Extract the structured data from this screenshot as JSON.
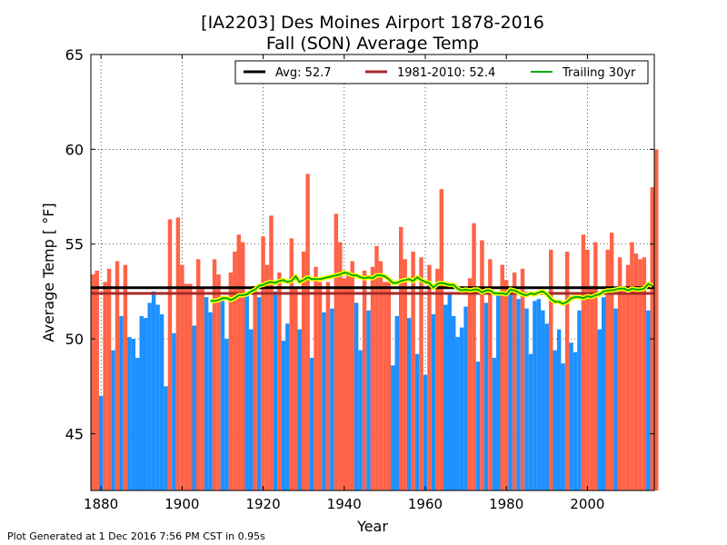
{
  "chart_data": {
    "type": "bar",
    "title": "[IA2203] Des Moines Airport 1878-2016",
    "subtitle": "Fall (SON) Average Temp",
    "xlabel": "Year",
    "ylabel": "Average Temp [ °F]",
    "xlim": [
      1877.5,
      2016.5
    ],
    "ylim": [
      42,
      65
    ],
    "xticks": [
      1880,
      1900,
      1920,
      1940,
      1960,
      1980,
      2000
    ],
    "yticks": [
      45,
      50,
      55,
      60,
      65
    ],
    "grid": true,
    "legend_position": "top-right",
    "above_color": "#ff6347",
    "below_color": "#1e90ff",
    "start_year": 1878,
    "values": [
      53.4,
      53.6,
      47.0,
      53.0,
      53.7,
      49.4,
      54.1,
      51.2,
      53.9,
      50.1,
      50.0,
      49.0,
      51.2,
      51.1,
      51.9,
      52.5,
      51.8,
      51.3,
      47.5,
      56.3,
      50.3,
      56.4,
      53.9,
      52.9,
      52.9,
      50.7,
      54.2,
      52.7,
      52.2,
      51.4,
      54.2,
      53.4,
      52.0,
      50.0,
      53.5,
      54.6,
      55.5,
      55.1,
      52.3,
      50.5,
      52.8,
      52.2,
      55.4,
      53.9,
      56.5,
      52.5,
      53.5,
      49.9,
      50.8,
      55.3,
      52.7,
      50.5,
      54.6,
      58.7,
      49.0,
      53.8,
      53.0,
      51.4,
      53.0,
      51.6,
      56.6,
      55.1,
      53.2,
      53.5,
      54.1,
      51.9,
      49.4,
      53.6,
      51.5,
      53.8,
      54.9,
      54.1,
      53.0,
      53.0,
      48.6,
      51.2,
      55.9,
      54.2,
      51.1,
      54.6,
      49.2,
      54.3,
      48.1,
      53.9,
      51.3,
      53.7,
      57.9,
      51.8,
      52.4,
      51.2,
      50.1,
      50.6,
      51.7,
      53.2,
      56.1,
      48.8,
      55.2,
      51.9,
      54.2,
      49.0,
      52.5,
      53.9,
      53.1,
      52.4,
      53.5,
      52.1,
      53.7,
      51.6,
      49.2,
      52.0,
      52.1,
      51.5,
      50.8,
      54.7,
      49.4,
      50.5,
      48.7,
      54.6,
      49.8,
      49.3,
      51.5,
      55.5,
      54.7,
      52.8,
      55.1,
      50.5,
      52.2,
      54.7,
      55.6,
      51.6,
      54.3,
      52.7,
      53.9,
      55.1,
      54.5,
      54.2,
      54.3,
      51.5,
      58.0,
      60.0
    ],
    "trailing_start_year": 1907,
    "trailing_30yr": [
      52.0,
      52.0,
      52.05,
      52.15,
      52.15,
      52.05,
      52.15,
      52.3,
      52.3,
      52.35,
      52.5,
      52.6,
      52.8,
      52.85,
      52.95,
      53.0,
      52.95,
      53.05,
      53.1,
      53.0,
      53.05,
      53.3,
      53.0,
      53.1,
      53.25,
      53.15,
      53.15,
      53.15,
      53.2,
      53.25,
      53.3,
      53.35,
      53.4,
      53.5,
      53.45,
      53.35,
      53.35,
      53.25,
      53.2,
      53.25,
      53.2,
      53.35,
      53.35,
      53.3,
      53.15,
      52.95,
      52.95,
      53.05,
      53.1,
      53.15,
      53.05,
      53.25,
      53.1,
      53.0,
      52.95,
      52.7,
      52.9,
      52.95,
      52.9,
      52.85,
      52.85,
      52.65,
      52.55,
      52.6,
      52.55,
      52.6,
      52.6,
      52.45,
      52.55,
      52.55,
      52.4,
      52.4,
      52.4,
      52.35,
      52.6,
      52.55,
      52.45,
      52.35,
      52.3,
      52.4,
      52.35,
      52.45,
      52.5,
      52.35,
      52.1,
      51.95,
      51.95,
      51.85,
      51.95,
      52.15,
      52.2,
      52.2,
      52.15,
      52.25,
      52.2,
      52.3,
      52.35,
      52.5,
      52.55,
      52.55,
      52.6,
      52.65,
      52.65,
      52.55,
      52.65,
      52.6,
      52.6,
      52.65,
      52.9,
      52.8
    ],
    "avg": 52.7,
    "normal": 52.4,
    "legend": {
      "avg_label": "Avg: 52.7",
      "normal_label": "1981-2010: 52.4",
      "trailing_label": "Trailing 30yr",
      "avg_color": "#000000",
      "normal_color": "#a52a2a",
      "trailing_color": "#00aa00"
    }
  },
  "footer": "Plot Generated at 1 Dec 2016 7:56 PM CST in 0.95s"
}
